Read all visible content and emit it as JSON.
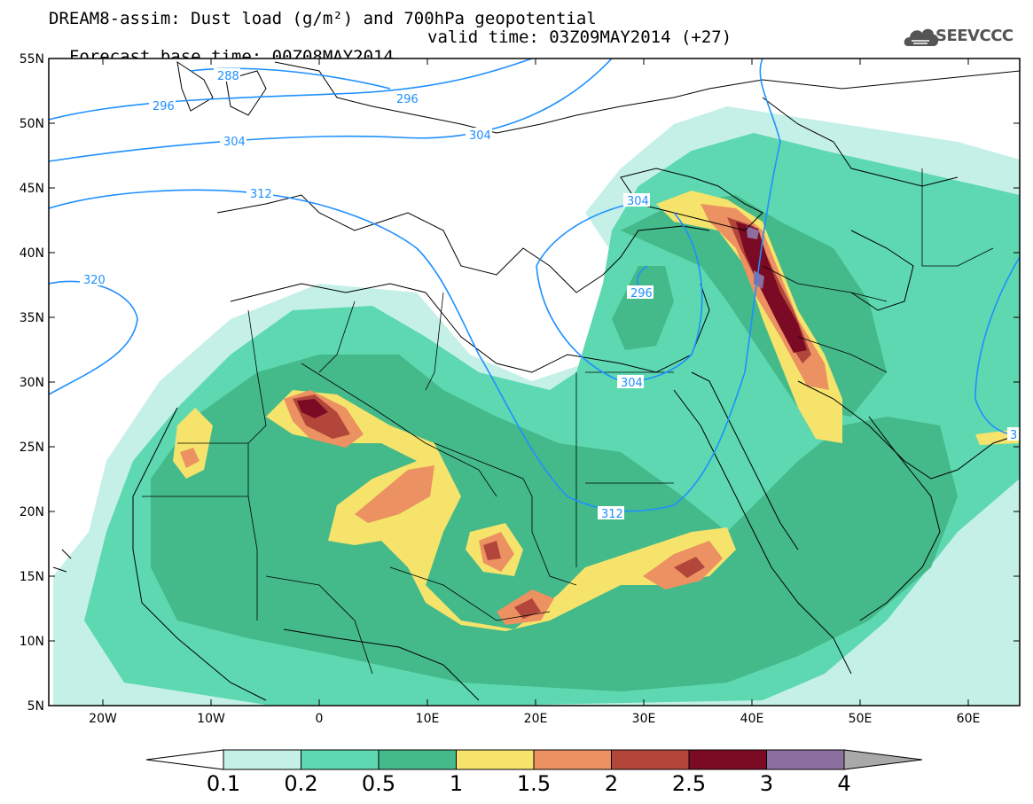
{
  "header": {
    "line1": "DREAM8-assim: Dust load (g/m²) and 700hPa geopotential",
    "line2_left": "Forecast base time: 00Z08MAY2014",
    "line2_right": "valid time: 03Z09MAY2014 (+27)"
  },
  "logo": {
    "text": "SEEVCCC",
    "icon": "cloud-icon"
  },
  "axes": {
    "lat_labels": [
      "55N",
      "50N",
      "45N",
      "40N",
      "35N",
      "30N",
      "25N",
      "20N",
      "15N",
      "10N",
      "5N"
    ],
    "lon_labels": [
      "20W",
      "10W",
      "0",
      "10E",
      "20E",
      "30E",
      "40E",
      "50E",
      "60E"
    ]
  },
  "contours": {
    "labels": [
      "288",
      "296",
      "296",
      "304",
      "304",
      "312",
      "320",
      "304",
      "296",
      "304",
      "312",
      "3"
    ]
  },
  "colorbar": {
    "labels": [
      "0.1",
      "0.2",
      "0.5",
      "1",
      "1.5",
      "2",
      "2.5",
      "3",
      "4"
    ],
    "colors": [
      "#c4f0e8",
      "#5dd8b0",
      "#44b98a",
      "#f5e36c",
      "#ec9161",
      "#b3463b",
      "#7b0a24",
      "#8c6f9f"
    ],
    "under_color": "#ffffff",
    "over_color": "#a9a9a9"
  },
  "colors": {
    "contour": "#1e90ff",
    "frame": "#000000",
    "land_border": "#000000"
  }
}
